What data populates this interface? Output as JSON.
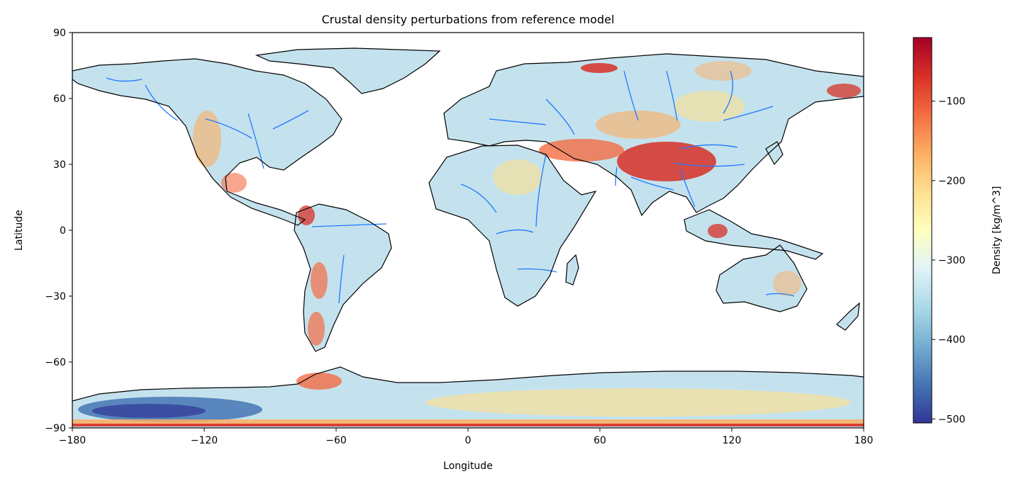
{
  "chart_data": {
    "type": "heatmap",
    "title": "Crustal density perturbations from reference model",
    "xlabel": "Longitude",
    "ylabel": "Latitude",
    "xlim": [
      -180,
      180
    ],
    "ylim": [
      -90,
      90
    ],
    "xticks": [
      -180,
      -120,
      -60,
      0,
      60,
      120,
      180
    ],
    "xtick_labels": [
      "−180",
      "−120",
      "−60",
      "0",
      "60",
      "120",
      "180"
    ],
    "yticks": [
      -90,
      -60,
      -30,
      0,
      30,
      60,
      90
    ],
    "ytick_labels": [
      "−90",
      "−60",
      "−30",
      "0",
      "30",
      "60",
      "90"
    ],
    "colorbar": {
      "label": "Density [kg/m^3]",
      "range": [
        -505,
        -20
      ],
      "ticks": [
        -500,
        -400,
        -300,
        -200,
        -100
      ],
      "tick_labels": [
        "−500",
        "−400",
        "−300",
        "−200",
        "−100"
      ],
      "colormap": "RdYlBu_r",
      "colors": [
        "#313695",
        "#4575b4",
        "#74add1",
        "#abd9e9",
        "#e0f3f8",
        "#ffffbf",
        "#fee090",
        "#fdae61",
        "#f46d43",
        "#d73027",
        "#a50026"
      ]
    },
    "coastline_color": "#000000",
    "river_color": "#1f78ff",
    "features": [
      "coastlines",
      "rivers"
    ]
  }
}
